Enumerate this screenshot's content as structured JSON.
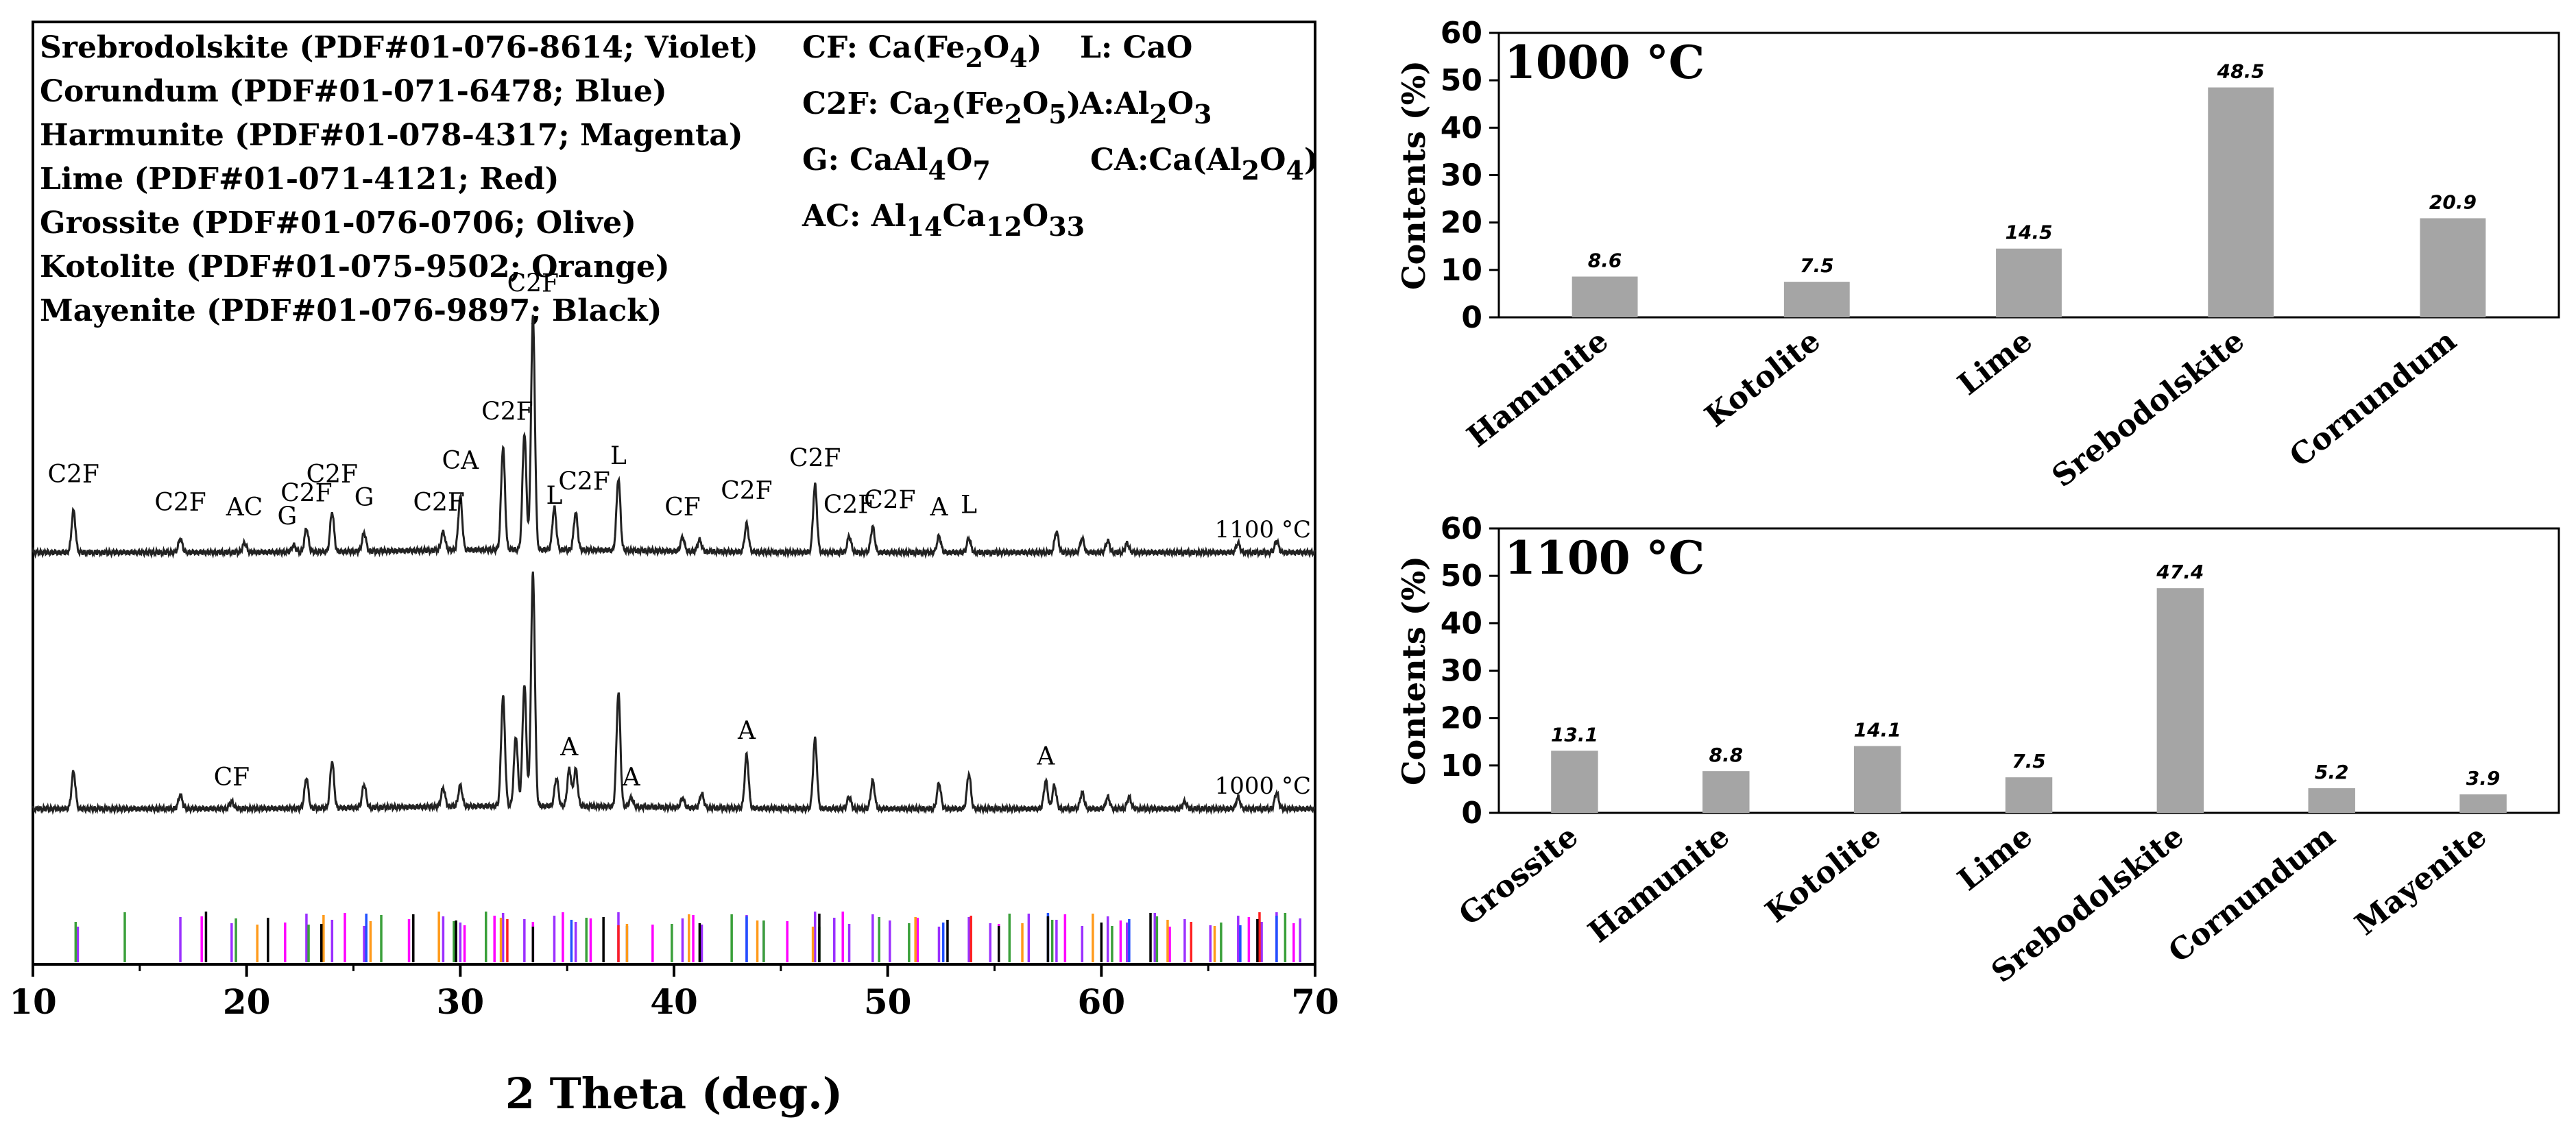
{
  "chart_data": [
    {
      "type": "line",
      "xlabel": "2 Theta (deg.)",
      "xlim": [
        10,
        70
      ],
      "xticks": [
        10,
        20,
        30,
        40,
        50,
        60,
        70
      ],
      "legend_lines": [
        "Srebrodolskite (PDF#01-076-8614; Violet)",
        "Corundum (PDF#01-071-6478; Blue)",
        "Harmunite (PDF#01-078-4317; Magenta)",
        "Lime (PDF#01-071-4121; Red)",
        "Grossite (PDF#01-076-0706; Olive)",
        "Kotolite (PDF#01-075-9502; Orange)",
        "Mayenite (PDF#01-076-9897; Black)"
      ],
      "abbreviations": {
        "cf": {
          "pre": "CF: Ca(Fe",
          "s1": "2",
          "m1": "O",
          "s2": "4",
          "post": ")"
        },
        "l": {
          "pre": "L: CaO",
          "s1": "",
          "m1": "",
          "s2": "",
          "post": ""
        },
        "c2f": {
          "pre": "C2F: Ca",
          "s1": "2",
          "m1": "(Fe",
          "s2": "2",
          "m2": "O",
          "s3": "5",
          "post": ")"
        },
        "a": {
          "pre": "A:Al",
          "s1": "2",
          "m1": "O",
          "s2": "3",
          "post": ""
        },
        "g": {
          "pre": "G: CaAl",
          "s1": "4",
          "m1": "O",
          "s2": "7",
          "post": ""
        },
        "ca": {
          "pre": "CA:Ca(Al",
          "s1": "2",
          "m1": "O",
          "s2": "4",
          "post": ")"
        },
        "ac": {
          "pre": "AC: Al",
          "s1": "14",
          "m1": "Ca",
          "s2": "12",
          "m2": "O",
          "s3": "33",
          "post": ""
        }
      },
      "series": [
        {
          "name": "1100 °C",
          "peaks": [
            {
              "x": 11.9,
              "h": 0.18
            },
            {
              "x": 16.9,
              "h": 0.06
            },
            {
              "x": 19.9,
              "h": 0.04
            },
            {
              "x": 22.2,
              "h": 0.03
            },
            {
              "x": 22.8,
              "h": 0.1
            },
            {
              "x": 24.0,
              "h": 0.17
            },
            {
              "x": 25.5,
              "h": 0.08
            },
            {
              "x": 29.2,
              "h": 0.08
            },
            {
              "x": 30.0,
              "h": 0.23
            },
            {
              "x": 32.0,
              "h": 0.44
            },
            {
              "x": 33.0,
              "h": 0.5
            },
            {
              "x": 33.4,
              "h": 1.0
            },
            {
              "x": 34.4,
              "h": 0.18
            },
            {
              "x": 35.4,
              "h": 0.16
            },
            {
              "x": 37.4,
              "h": 0.31
            },
            {
              "x": 40.4,
              "h": 0.06
            },
            {
              "x": 41.2,
              "h": 0.05
            },
            {
              "x": 43.4,
              "h": 0.12
            },
            {
              "x": 46.6,
              "h": 0.29
            },
            {
              "x": 48.2,
              "h": 0.07
            },
            {
              "x": 49.3,
              "h": 0.11
            },
            {
              "x": 52.4,
              "h": 0.07
            },
            {
              "x": 53.8,
              "h": 0.06
            },
            {
              "x": 57.9,
              "h": 0.09
            },
            {
              "x": 59.1,
              "h": 0.06
            },
            {
              "x": 60.3,
              "h": 0.05
            },
            {
              "x": 61.2,
              "h": 0.04
            },
            {
              "x": 66.4,
              "h": 0.04
            },
            {
              "x": 68.2,
              "h": 0.05
            }
          ],
          "labels": [
            {
              "text": "C2F",
              "x": 11.9,
              "level": 0.27
            },
            {
              "text": "C2F",
              "x": 16.9,
              "level": 0.15
            },
            {
              "text": "AC",
              "x": 19.9,
              "level": 0.13
            },
            {
              "text": "G",
              "x": 21.9,
              "level": 0.09
            },
            {
              "text": "C2F",
              "x": 22.8,
              "level": 0.19
            },
            {
              "text": "C2F",
              "x": 24.0,
              "level": 0.27
            },
            {
              "text": "G",
              "x": 25.5,
              "level": 0.17
            },
            {
              "text": "C2F",
              "x": 29.0,
              "level": 0.15
            },
            {
              "text": "CA",
              "x": 30.0,
              "level": 0.33
            },
            {
              "text": "C2F",
              "x": 32.2,
              "level": 0.54
            },
            {
              "text": "C2F",
              "x": 33.4,
              "level": 1.09
            },
            {
              "text": "L",
              "x": 34.4,
              "level": 0.18
            },
            {
              "text": "C2F",
              "x": 35.8,
              "level": 0.24
            },
            {
              "text": "L",
              "x": 37.4,
              "level": 0.35
            },
            {
              "text": "CF",
              "x": 40.4,
              "level": 0.13
            },
            {
              "text": "C2F",
              "x": 43.4,
              "level": 0.2
            },
            {
              "text": "C2F",
              "x": 46.6,
              "level": 0.34
            },
            {
              "text": "C2F",
              "x": 48.2,
              "level": 0.14
            },
            {
              "text": "C2F",
              "x": 50.1,
              "level": 0.16
            },
            {
              "text": "A",
              "x": 52.4,
              "level": 0.13
            },
            {
              "text": "L",
              "x": 53.8,
              "level": 0.14
            }
          ]
        },
        {
          "name": "1000 °C",
          "peaks": [
            {
              "x": 11.9,
              "h": 0.16
            },
            {
              "x": 16.9,
              "h": 0.06
            },
            {
              "x": 19.3,
              "h": 0.03
            },
            {
              "x": 22.8,
              "h": 0.13
            },
            {
              "x": 24.0,
              "h": 0.2
            },
            {
              "x": 25.5,
              "h": 0.1
            },
            {
              "x": 29.2,
              "h": 0.08
            },
            {
              "x": 30.0,
              "h": 0.09
            },
            {
              "x": 32.0,
              "h": 0.47
            },
            {
              "x": 32.6,
              "h": 0.3
            },
            {
              "x": 33.0,
              "h": 0.52
            },
            {
              "x": 33.4,
              "h": 1.0
            },
            {
              "x": 34.5,
              "h": 0.12
            },
            {
              "x": 35.1,
              "h": 0.16
            },
            {
              "x": 35.4,
              "h": 0.16
            },
            {
              "x": 37.4,
              "h": 0.49
            },
            {
              "x": 38.0,
              "h": 0.04
            },
            {
              "x": 40.4,
              "h": 0.04
            },
            {
              "x": 41.3,
              "h": 0.06
            },
            {
              "x": 43.4,
              "h": 0.23
            },
            {
              "x": 46.6,
              "h": 0.3
            },
            {
              "x": 48.2,
              "h": 0.05
            },
            {
              "x": 49.3,
              "h": 0.12
            },
            {
              "x": 52.4,
              "h": 0.11
            },
            {
              "x": 53.8,
              "h": 0.15
            },
            {
              "x": 57.4,
              "h": 0.12
            },
            {
              "x": 57.8,
              "h": 0.1
            },
            {
              "x": 59.1,
              "h": 0.07
            },
            {
              "x": 60.3,
              "h": 0.05
            },
            {
              "x": 61.3,
              "h": 0.05
            },
            {
              "x": 63.9,
              "h": 0.03
            },
            {
              "x": 66.4,
              "h": 0.05
            },
            {
              "x": 68.2,
              "h": 0.07
            }
          ],
          "labels": [
            {
              "text": "CF",
              "x": 19.3,
              "level": 0.07
            },
            {
              "text": "A",
              "x": 35.1,
              "level": 0.2
            },
            {
              "text": "A",
              "x": 38.0,
              "level": 0.07
            },
            {
              "text": "A",
              "x": 43.4,
              "level": 0.27
            },
            {
              "text": "A",
              "x": 57.4,
              "level": 0.16
            }
          ]
        }
      ],
      "references": [
        {
          "name": "Srebrodolskite",
          "color": "#9b30ff",
          "x": [
            12.1,
            16.9,
            19.3,
            22.8,
            24.0,
            25.5,
            29.2,
            30.0,
            32.0,
            33.0,
            33.4,
            34.4,
            35.4,
            37.4,
            40.4,
            41.3,
            43.4,
            44.2,
            46.6,
            47.5,
            48.2,
            49.3,
            50.1,
            52.4,
            53.8,
            54.8,
            56.6,
            57.9,
            59.1,
            60.3,
            61.2,
            62.5,
            63.9,
            65.1,
            66.4,
            67.5,
            68.2,
            69.3
          ]
        },
        {
          "name": "Corundum",
          "color": "#2050ff",
          "x": [
            25.6,
            35.2,
            37.8,
            43.4,
            52.6,
            57.5,
            61.3,
            66.5,
            68.2
          ]
        },
        {
          "name": "Harmunite",
          "color": "#ff00ff",
          "x": [
            17.9,
            21.8,
            24.6,
            27.6,
            30.2,
            31.6,
            33.4,
            34.8,
            36.1,
            39.0,
            40.9,
            45.3,
            47.9,
            51.4,
            55.2,
            58.3,
            60.9,
            63.2,
            66.9,
            69.0
          ]
        },
        {
          "name": "Lime",
          "color": "#ff2020",
          "x": [
            32.2,
            37.4,
            53.9,
            64.2,
            67.4
          ]
        },
        {
          "name": "Grossite",
          "color": "#3aa03a",
          "x": [
            12.0,
            14.3,
            19.5,
            22.9,
            26.3,
            29.7,
            31.2,
            35.9,
            39.9,
            42.7,
            44.2,
            46.8,
            49.6,
            51.0,
            55.7,
            57.7,
            60.5,
            62.6,
            65.6,
            68.6
          ]
        },
        {
          "name": "Kotolite",
          "color": "#ff9a1a",
          "x": [
            20.5,
            23.6,
            25.8,
            29.0,
            31.9,
            37.8,
            40.7,
            43.9,
            46.5,
            51.3,
            56.3,
            59.6,
            63.1,
            65.3
          ]
        },
        {
          "name": "Mayenite",
          "color": "#000000",
          "x": [
            18.1,
            21.0,
            23.5,
            27.8,
            29.8,
            33.4,
            36.7,
            41.2,
            46.8,
            52.8,
            55.2,
            57.5,
            60.0,
            62.3,
            67.3
          ]
        }
      ]
    },
    {
      "type": "bar",
      "title": "1000 °C",
      "ylabel": "Contents (%)",
      "ylim": [
        0,
        60
      ],
      "yticks": [
        0,
        10,
        20,
        30,
        40,
        50,
        60
      ],
      "categories": [
        "Hamunite",
        "Kotolite",
        "Lime",
        "Srebodolskite",
        "Cornundum"
      ],
      "values": [
        8.6,
        7.5,
        14.5,
        48.5,
        20.9
      ],
      "value_labels": [
        "8.6",
        "7.5",
        "14.5",
        "48.5",
        "20.9"
      ],
      "bar_color": "#a5a5a5"
    },
    {
      "type": "bar",
      "title": "1100 °C",
      "ylabel": "Contents (%)",
      "ylim": [
        0,
        60
      ],
      "yticks": [
        0,
        10,
        20,
        30,
        40,
        50,
        60
      ],
      "categories": [
        "Grossite",
        "Hamunite",
        "Kotolite",
        "Lime",
        "Srebodolskite",
        "Cornundum",
        "Mayenite"
      ],
      "values": [
        13.1,
        8.8,
        14.1,
        7.5,
        47.4,
        5.2,
        3.9
      ],
      "value_labels": [
        "13.1",
        "8.8",
        "14.1",
        "7.5",
        "47.4",
        "5.2",
        "3.9"
      ],
      "bar_color": "#a5a5a5"
    }
  ]
}
